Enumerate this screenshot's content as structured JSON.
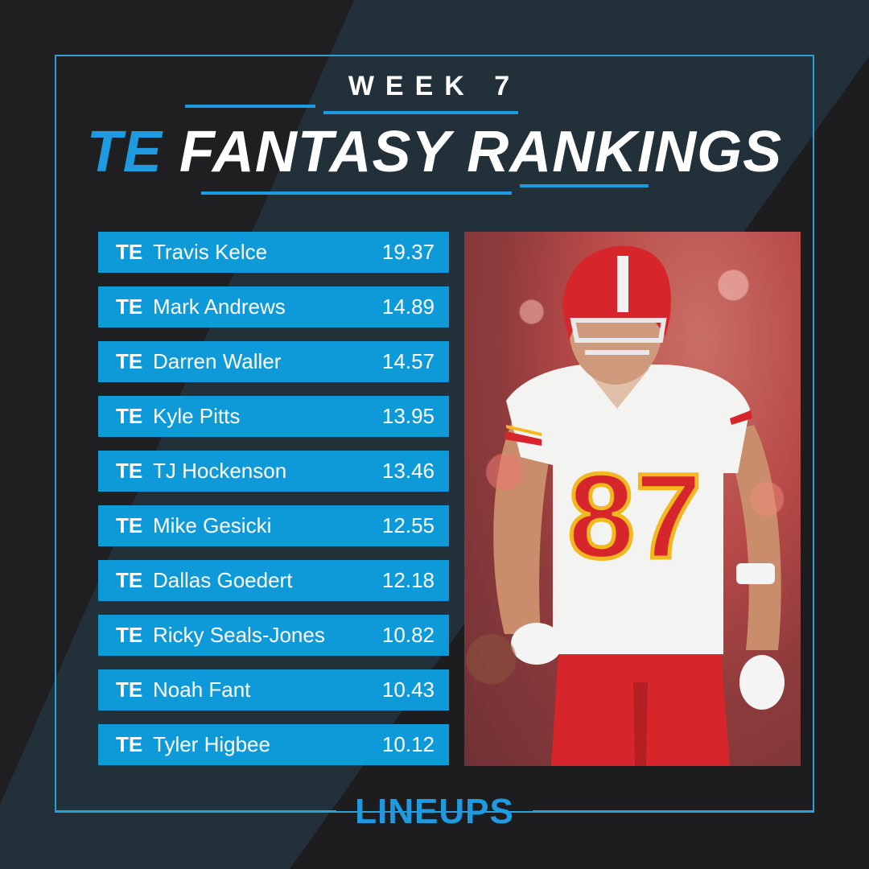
{
  "header": {
    "week": "WEEK 7",
    "title_accent": "TE",
    "title_main": "FANTASY RANKINGS"
  },
  "rankings": [
    {
      "pos": "TE",
      "name": "Travis Kelce",
      "points": "19.37"
    },
    {
      "pos": "TE",
      "name": "Mark Andrews",
      "points": "14.89"
    },
    {
      "pos": "TE",
      "name": "Darren Waller",
      "points": "14.57"
    },
    {
      "pos": "TE",
      "name": "Kyle Pitts",
      "points": "13.95"
    },
    {
      "pos": "TE",
      "name": "TJ Hockenson",
      "points": "13.46"
    },
    {
      "pos": "TE",
      "name": "Mike Gesicki",
      "points": "12.55"
    },
    {
      "pos": "TE",
      "name": "Dallas Goedert",
      "points": "12.18"
    },
    {
      "pos": "TE",
      "name": "Ricky Seals-Jones",
      "points": "10.82"
    },
    {
      "pos": "TE",
      "name": "Noah Fant",
      "points": "10.43"
    },
    {
      "pos": "TE",
      "name": "Tyler Higbee",
      "points": "10.12"
    }
  ],
  "photo": {
    "jersey_number": "87"
  },
  "footer": {
    "logo": "LINEUPS"
  },
  "colors": {
    "accent": "#1e9be0",
    "row_bg": "#0e9ad9",
    "background": "#1f1f21",
    "jersey_red": "#d52b2b"
  }
}
